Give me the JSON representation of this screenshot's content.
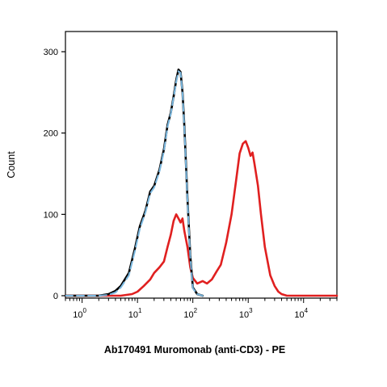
{
  "chart_data": {
    "type": "line",
    "title": "",
    "xlabel": "Ab170491 Muromonab (anti-CD3) - PE",
    "ylabel": "Count",
    "x_scale": "log",
    "xlim": [
      0.5,
      40000
    ],
    "ylim": [
      0,
      300
    ],
    "y_ticks": [
      "0",
      "100",
      "200",
      "300"
    ],
    "x_ticks": [
      {
        "value": 1,
        "base": "10",
        "exp": "0"
      },
      {
        "value": 10,
        "base": "10",
        "exp": "1"
      },
      {
        "value": 100,
        "base": "10",
        "exp": "2"
      },
      {
        "value": 1000,
        "base": "10",
        "exp": "3"
      },
      {
        "value": 10000,
        "base": "10",
        "exp": "4"
      }
    ],
    "grid": false,
    "legend": "none",
    "series": [
      {
        "color": "#000000",
        "style": "solid",
        "x": [
          0.5,
          2,
          3,
          4,
          5,
          7,
          9,
          11,
          14,
          17,
          20,
          25,
          30,
          35,
          40,
          45,
          50,
          55,
          60,
          65,
          70,
          80,
          90,
          100,
          120,
          150
        ],
        "y": [
          0,
          0,
          2,
          6,
          12,
          28,
          58,
          85,
          105,
          128,
          135,
          155,
          180,
          210,
          225,
          245,
          265,
          278,
          275,
          250,
          210,
          120,
          50,
          10,
          2,
          0
        ]
      },
      {
        "color": "#7ab8e0",
        "style": "dashed",
        "x": [
          0.5,
          2,
          3,
          4,
          5,
          7,
          9,
          11,
          14,
          17,
          20,
          25,
          30,
          35,
          40,
          45,
          50,
          55,
          60,
          65,
          70,
          80,
          90,
          100,
          120,
          150
        ],
        "y": [
          0,
          0,
          1,
          4,
          10,
          25,
          55,
          82,
          103,
          126,
          133,
          153,
          178,
          208,
          224,
          244,
          263,
          276,
          274,
          249,
          208,
          118,
          48,
          9,
          2,
          0
        ]
      },
      {
        "color": "#e02020",
        "style": "solid",
        "x": [
          0.5,
          5,
          8,
          10,
          13,
          17,
          20,
          25,
          30,
          35,
          40,
          45,
          50,
          55,
          60,
          65,
          70,
          80,
          90,
          100,
          120,
          150,
          180,
          220,
          270,
          320,
          400,
          500,
          600,
          700,
          800,
          900,
          1000,
          1100,
          1200,
          1300,
          1500,
          1700,
          2000,
          2500,
          3000,
          3500,
          4000,
          5000,
          10000,
          40000
        ],
        "y": [
          0,
          0,
          2,
          5,
          12,
          20,
          28,
          35,
          42,
          60,
          75,
          92,
          100,
          95,
          90,
          95,
          80,
          60,
          35,
          22,
          15,
          18,
          15,
          20,
          30,
          38,
          65,
          100,
          140,
          175,
          187,
          190,
          182,
          172,
          176,
          162,
          135,
          100,
          60,
          25,
          12,
          5,
          2,
          0,
          0,
          0
        ]
      }
    ]
  }
}
